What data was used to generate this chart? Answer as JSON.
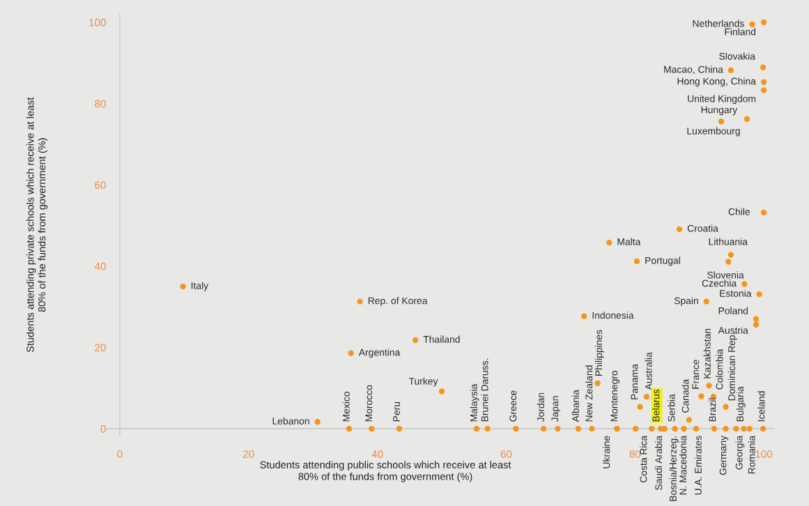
{
  "chart_data": {
    "type": "scatter",
    "xlabel": "Students attending public schools which receive at least\n80% of the funds from government (%)",
    "ylabel": "Students attending private schools which receive at least\n80% of the funds from government (%)",
    "xlim": [
      -2.4,
      101.5
    ],
    "ylim": [
      -1.7,
      102
    ],
    "xticks": [
      0,
      20,
      40,
      60,
      80,
      100
    ],
    "yticks": [
      0,
      20,
      40,
      60,
      80,
      100
    ],
    "grid": false,
    "marker": "circle",
    "series": [
      {
        "color": "#f7941d",
        "x": [
          9.8,
          30.7,
          35.6,
          35.9,
          37.3,
          39.1,
          43.4,
          45.9,
          50.0,
          55.4,
          57.1,
          61.5,
          65.8,
          68.0,
          71.2,
          73.3,
          72.1,
          74.2,
          76.0,
          77.2,
          77.2,
          80.1,
          80.8,
          80.3,
          81.8,
          82.6,
          84.0,
          84.6,
          86.2,
          86.9,
          87.6,
          88.4,
          89.5,
          90.3,
          91.1,
          91.5,
          92.2,
          92.3,
          93.4,
          94.1,
          94.1,
          94.5,
          94.9,
          94.9,
          95.7,
          96.9,
          97.0,
          97.4,
          97.8,
          98.2,
          98.8,
          98.8,
          99.3,
          99.9,
          99.9,
          100,
          100,
          100,
          100
        ],
        "values": [
          35.0,
          1.7,
          0,
          18.6,
          31.3,
          0,
          0,
          21.8,
          9.2,
          0,
          0,
          0,
          0,
          0,
          0,
          0,
          27.7,
          11.2,
          45.8,
          0,
          0,
          0,
          5.4,
          41.2,
          7.9,
          0,
          0,
          0,
          0,
          49.1,
          0,
          2.2,
          0,
          8.0,
          31.3,
          10.6,
          7.9,
          0,
          75.6,
          0,
          5.4,
          41.1,
          42.8,
          88.2,
          0,
          0,
          35.6,
          76.2,
          0,
          99.5,
          27.0,
          25.6,
          33.1,
          88.9,
          0,
          100,
          85.3,
          83.3,
          53.2
        ]
      }
    ],
    "annotations": [
      {
        "text": "Italy",
        "x": 9.8,
        "y": 35.0
      },
      {
        "text": "Lebanon",
        "x": 30.7,
        "y": 1.7
      },
      {
        "text": "Mexico",
        "x": 35.6,
        "y": 0
      },
      {
        "text": "Argentina",
        "x": 35.9,
        "y": 18.6
      },
      {
        "text": "Rep. of Korea",
        "x": 37.3,
        "y": 31.3
      },
      {
        "text": "Morocco",
        "x": 39.1,
        "y": 0
      },
      {
        "text": "Peru",
        "x": 43.4,
        "y": 0
      },
      {
        "text": "Thailand",
        "x": 45.9,
        "y": 21.8
      },
      {
        "text": "Turkey",
        "x": 50.0,
        "y": 9.2
      },
      {
        "text": "Malaysia",
        "x": 55.4,
        "y": 0
      },
      {
        "text": "Brunei Daruss.",
        "x": 57.1,
        "y": 0
      },
      {
        "text": "Greece",
        "x": 61.5,
        "y": 0
      },
      {
        "text": "Jordan",
        "x": 65.8,
        "y": 0
      },
      {
        "text": "Japan",
        "x": 68.0,
        "y": 0
      },
      {
        "text": "Albania",
        "x": 71.2,
        "y": 0
      },
      {
        "text": "New Zealand",
        "x": 73.3,
        "y": 0
      },
      {
        "text": "Indonesia",
        "x": 72.1,
        "y": 27.7
      },
      {
        "text": "Philippines",
        "x": 74.2,
        "y": 11.2
      },
      {
        "text": "Malta",
        "x": 76.0,
        "y": 45.8
      },
      {
        "text": "Montenegro",
        "x": 77.2,
        "y": 0
      },
      {
        "text": "Ukraine",
        "x": 77.2,
        "y": 0
      },
      {
        "text": "Costa Rica",
        "x": 80.1,
        "y": 0
      },
      {
        "text": "Panama",
        "x": 80.8,
        "y": 5.4
      },
      {
        "text": "Portugal",
        "x": 80.3,
        "y": 41.2
      },
      {
        "text": "Australia",
        "x": 81.8,
        "y": 7.9
      },
      {
        "text": "Saudi Arabia",
        "x": 82.6,
        "y": 0
      },
      {
        "text": "Belarus",
        "x": 84.0,
        "y": 0
      },
      {
        "text": "Serbia",
        "x": 84.6,
        "y": 0
      },
      {
        "text": "Bosnia/Herzeg.",
        "x": 86.2,
        "y": 0
      },
      {
        "text": "Croatia",
        "x": 86.9,
        "y": 49.1
      },
      {
        "text": "N. Macedonia",
        "x": 87.6,
        "y": 0
      },
      {
        "text": "Canada",
        "x": 88.4,
        "y": 2.2
      },
      {
        "text": "U.A. Emirates",
        "x": 89.5,
        "y": 0
      },
      {
        "text": "France",
        "x": 90.3,
        "y": 8.0
      },
      {
        "text": "Spain",
        "x": 91.1,
        "y": 31.3
      },
      {
        "text": "Kazakhstan",
        "x": 91.5,
        "y": 10.6
      },
      {
        "text": "Colombia",
        "x": 92.2,
        "y": 7.9
      },
      {
        "text": "Brazil",
        "x": 92.3,
        "y": 0
      },
      {
        "text": "Luxembourg",
        "x": 93.4,
        "y": 75.6
      },
      {
        "text": "Germany",
        "x": 94.1,
        "y": 0
      },
      {
        "text": "Dominican Rep.",
        "x": 94.1,
        "y": 5.4
      },
      {
        "text": "Slovenia",
        "x": 94.5,
        "y": 41.1
      },
      {
        "text": "Lithuania",
        "x": 94.9,
        "y": 42.8
      },
      {
        "text": "Macao, China",
        "x": 94.9,
        "y": 88.2
      },
      {
        "text": "Georgia",
        "x": 95.7,
        "y": 0
      },
      {
        "text": "Bulgaria",
        "x": 96.9,
        "y": 0
      },
      {
        "text": "Czechia",
        "x": 97.0,
        "y": 35.6
      },
      {
        "text": "Hungary",
        "x": 97.4,
        "y": 76.2
      },
      {
        "text": "Romania",
        "x": 97.8,
        "y": 0
      },
      {
        "text": "Netherlands",
        "x": 98.2,
        "y": 99.5
      },
      {
        "text": "Poland",
        "x": 98.8,
        "y": 27.0
      },
      {
        "text": "Austria",
        "x": 98.8,
        "y": 25.6
      },
      {
        "text": "Estonia",
        "x": 99.3,
        "y": 33.1
      },
      {
        "text": "Slovakia",
        "x": 99.9,
        "y": 88.9
      },
      {
        "text": "Iceland",
        "x": 99.9,
        "y": 0
      },
      {
        "text": "Finland",
        "x": 100,
        "y": 100
      },
      {
        "text": "Hong Kong, China",
        "x": 100,
        "y": 85.3
      },
      {
        "text": "United Kingdom",
        "x": 100,
        "y": 83.3
      },
      {
        "text": "Chile",
        "x": 100,
        "y": 53.2
      }
    ]
  }
}
